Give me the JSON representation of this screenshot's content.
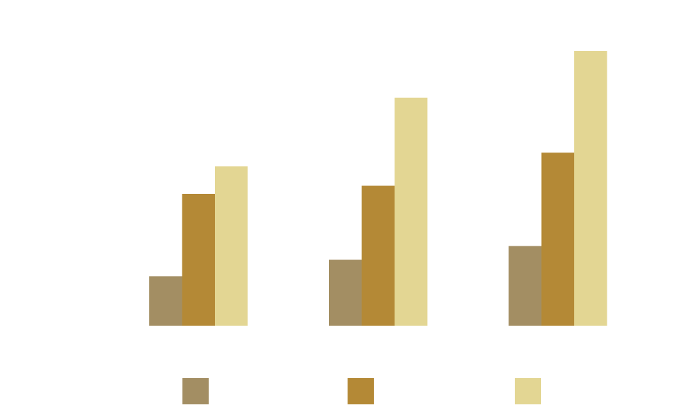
{
  "chart_data": {
    "type": "bar",
    "title": "",
    "xlabel": "",
    "ylabel": "",
    "categories": [
      "",
      "",
      ""
    ],
    "ylim": [
      0,
      100
    ],
    "grid": false,
    "legend_position": "bottom",
    "series": [
      {
        "values": [
          18,
          24,
          29
        ],
        "color": "#a38e63"
      },
      {
        "values": [
          48,
          51,
          63
        ],
        "color": "#b48936"
      },
      {
        "values": [
          58,
          83,
          100
        ],
        "color": "#e3d693"
      }
    ]
  }
}
